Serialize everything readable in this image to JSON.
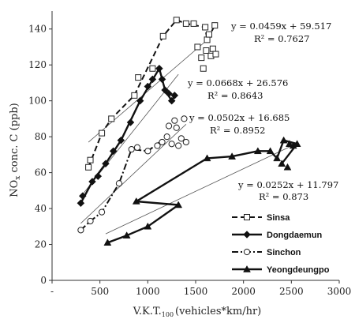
{
  "chart_data": {
    "type": "scatter",
    "xlabel": "V.K.T.",
    "xlabel_sub": "100",
    "xlabel_unit": "(vehicles*km/hr)",
    "ylabel": "NOx conc. C (ppb)",
    "ylabel_parts": {
      "pre": "NO",
      "sub": "x",
      "post": " conc. C (ppb)"
    },
    "xlim": [
      0,
      3000
    ],
    "ylim": [
      0,
      150
    ],
    "x_ticks": [
      "-",
      "500",
      "1000",
      "1500",
      "2000",
      "2500",
      "3000"
    ],
    "y_ticks": [
      "0",
      "20",
      "40",
      "60",
      "80",
      "100",
      "120",
      "140"
    ],
    "grid": false,
    "legend_position": "bottom-right",
    "series": [
      {
        "name": "Sinsa",
        "marker": "square",
        "line_style": "dashed",
        "trend": {
          "equation": "y = 0.0459x + 59.517",
          "r2": "R² = 0.7627",
          "slope": 0.0459,
          "intercept": 59.517,
          "x_range": [
            380,
            1650
          ]
        },
        "points": [
          [
            380,
            63
          ],
          [
            400,
            67
          ],
          [
            520,
            82
          ],
          [
            620,
            90
          ],
          [
            860,
            103
          ],
          [
            900,
            113
          ],
          [
            1050,
            118
          ],
          [
            1160,
            136
          ],
          [
            1300,
            145
          ],
          [
            1400,
            143
          ],
          [
            1480,
            143
          ],
          [
            1520,
            130
          ],
          [
            1560,
            124
          ],
          [
            1580,
            118
          ],
          [
            1600,
            141
          ],
          [
            1610,
            128
          ],
          [
            1620,
            134
          ],
          [
            1640,
            137
          ],
          [
            1660,
            125
          ],
          [
            1680,
            129
          ],
          [
            1700,
            142
          ],
          [
            1710,
            126
          ]
        ],
        "path": [
          [
            380,
            63
          ],
          [
            520,
            82
          ],
          [
            620,
            90
          ],
          [
            860,
            103
          ],
          [
            1160,
            136
          ],
          [
            1300,
            145
          ],
          [
            1400,
            143
          ],
          [
            1600,
            141
          ],
          [
            1620,
            134
          ],
          [
            1700,
            142
          ]
        ]
      },
      {
        "name": "Dongdaemun",
        "marker": "diamond",
        "line_style": "solid",
        "trend": {
          "equation": "y = 0.0668x + 26.576",
          "r2": "R² = 0.8643",
          "slope": 0.0668,
          "intercept": 26.576,
          "x_range": [
            300,
            1320
          ]
        },
        "points": [
          [
            300,
            43
          ],
          [
            320,
            47
          ],
          [
            420,
            55
          ],
          [
            480,
            58
          ],
          [
            560,
            65
          ],
          [
            640,
            72
          ],
          [
            720,
            78
          ],
          [
            820,
            88
          ],
          [
            920,
            100
          ],
          [
            1000,
            108
          ],
          [
            1050,
            112
          ],
          [
            1120,
            118
          ],
          [
            1150,
            112
          ],
          [
            1180,
            106
          ],
          [
            1220,
            104
          ],
          [
            1250,
            100
          ],
          [
            1280,
            103
          ]
        ],
        "path": [
          [
            300,
            43
          ],
          [
            420,
            55
          ],
          [
            560,
            65
          ],
          [
            720,
            78
          ],
          [
            920,
            100
          ],
          [
            1120,
            118
          ],
          [
            1180,
            106
          ],
          [
            1250,
            100
          ],
          [
            1280,
            103
          ]
        ]
      },
      {
        "name": "Sinchon",
        "marker": "circle",
        "line_style": "dash-dot",
        "trend": {
          "equation": "y = 0.0502x + 16.685",
          "r2": "R² = 0.8952",
          "slope": 0.0502,
          "intercept": 16.685,
          "x_range": [
            300,
            1400
          ]
        },
        "points": [
          [
            300,
            28
          ],
          [
            400,
            33
          ],
          [
            520,
            38
          ],
          [
            700,
            54
          ],
          [
            830,
            73
          ],
          [
            890,
            74
          ],
          [
            1000,
            72
          ],
          [
            1100,
            75
          ],
          [
            1150,
            77
          ],
          [
            1200,
            80
          ],
          [
            1220,
            86
          ],
          [
            1250,
            76
          ],
          [
            1280,
            89
          ],
          [
            1300,
            85
          ],
          [
            1320,
            75
          ],
          [
            1350,
            79
          ],
          [
            1380,
            90
          ],
          [
            1400,
            77
          ]
        ],
        "path": [
          [
            300,
            28
          ],
          [
            400,
            33
          ],
          [
            520,
            38
          ],
          [
            700,
            54
          ],
          [
            830,
            73
          ],
          [
            1000,
            72
          ],
          [
            1200,
            80
          ]
        ]
      },
      {
        "name": "Yeongdeungpo",
        "marker": "triangle",
        "line_style": "solid",
        "trend": {
          "equation": "y = 0.0252x + 11.797",
          "r2": "R² = 0.873",
          "slope": 0.0252,
          "intercept": 11.797,
          "x_range": [
            560,
            2560
          ]
        },
        "points": [
          [
            580,
            21
          ],
          [
            780,
            25
          ],
          [
            1000,
            30
          ],
          [
            1320,
            42
          ],
          [
            880,
            44
          ],
          [
            1620,
            68
          ],
          [
            1880,
            69
          ],
          [
            2150,
            72
          ],
          [
            2280,
            72
          ],
          [
            2350,
            68
          ],
          [
            2420,
            78
          ],
          [
            2480,
            76
          ],
          [
            2520,
            75
          ],
          [
            2560,
            76
          ],
          [
            2400,
            65
          ],
          [
            2460,
            63
          ]
        ],
        "path": [
          [
            580,
            21
          ],
          [
            780,
            25
          ],
          [
            1000,
            30
          ],
          [
            1320,
            42
          ],
          [
            880,
            44
          ],
          [
            1620,
            68
          ],
          [
            1880,
            69
          ],
          [
            2150,
            72
          ],
          [
            2280,
            72
          ],
          [
            2350,
            68
          ],
          [
            2420,
            78
          ],
          [
            2560,
            76
          ],
          [
            2400,
            65
          ]
        ]
      }
    ]
  }
}
